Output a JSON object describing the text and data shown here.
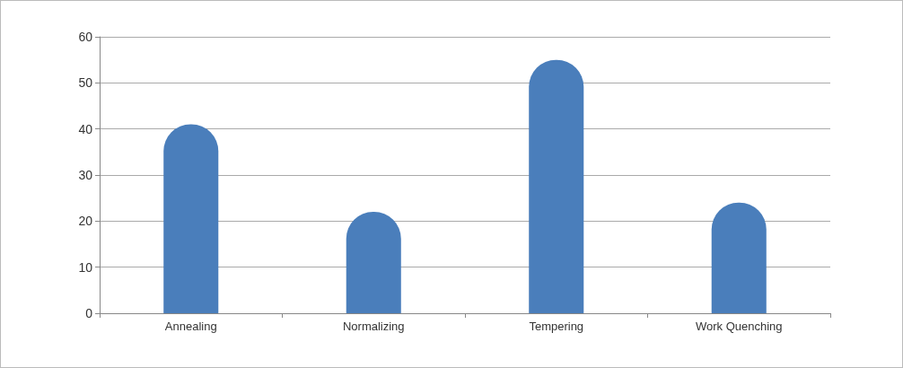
{
  "chart_data": {
    "type": "bar",
    "categories": [
      "Annealing",
      "Normalizing",
      "Tempering",
      "Work Quenching"
    ],
    "values": [
      41,
      22,
      55,
      24
    ],
    "color": "#4a7ebb",
    "ylim": [
      0,
      60
    ],
    "yticks": [
      0,
      10,
      20,
      30,
      40,
      50,
      60
    ],
    "grid": "y"
  }
}
